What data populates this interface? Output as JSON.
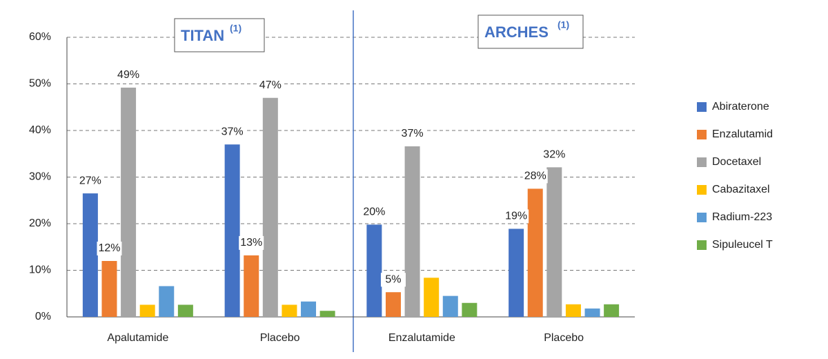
{
  "chart_data": {
    "type": "bar",
    "categories": [
      "Apalutamide",
      "Placebo",
      "Enzalutamide",
      "Placebo"
    ],
    "groups": [
      {
        "label": "TITAN",
        "note": "(1)"
      },
      {
        "label": "ARCHES",
        "note": "(1)"
      }
    ],
    "series": [
      {
        "name": "Abiraterone",
        "color": "#4472c4",
        "values": [
          26.5,
          37,
          19.8,
          18.9
        ],
        "value_labels": [
          "27%",
          "37%",
          "20%",
          "19%"
        ]
      },
      {
        "name": "Enzalutamid",
        "color": "#ed7d31",
        "values": [
          12,
          13.2,
          5.3,
          27.5
        ],
        "value_labels": [
          "12%",
          "13%",
          "5%",
          "28%"
        ]
      },
      {
        "name": "Docetaxel",
        "color": "#a5a5a5",
        "values": [
          49.2,
          47,
          36.6,
          32.1
        ],
        "value_labels": [
          "49%",
          "47%",
          "37%",
          "32%"
        ]
      },
      {
        "name": "Cabazitaxel",
        "color": "#ffc000",
        "values": [
          2.6,
          2.6,
          8.4,
          2.7
        ],
        "value_labels": [
          null,
          null,
          null,
          null
        ]
      },
      {
        "name": "Radium-223",
        "color": "#5b9bd5",
        "values": [
          6.6,
          3.3,
          4.5,
          1.8
        ],
        "value_labels": [
          null,
          null,
          null,
          null
        ]
      },
      {
        "name": "Sipuleucel T",
        "color": "#70ad47",
        "values": [
          2.6,
          1.3,
          3,
          2.7
        ],
        "value_labels": [
          null,
          null,
          null,
          null
        ]
      }
    ],
    "ylim": [
      0,
      60
    ],
    "yticks": [
      {
        "value": 0,
        "label": "0%"
      },
      {
        "value": 10,
        "label": "10%"
      },
      {
        "value": 20,
        "label": "20%"
      },
      {
        "value": 30,
        "label": "30%"
      },
      {
        "value": 40,
        "label": "40%"
      },
      {
        "value": 50,
        "label": "50%"
      },
      {
        "value": 60,
        "label": "60%"
      }
    ],
    "grid": true,
    "legend": "right"
  }
}
